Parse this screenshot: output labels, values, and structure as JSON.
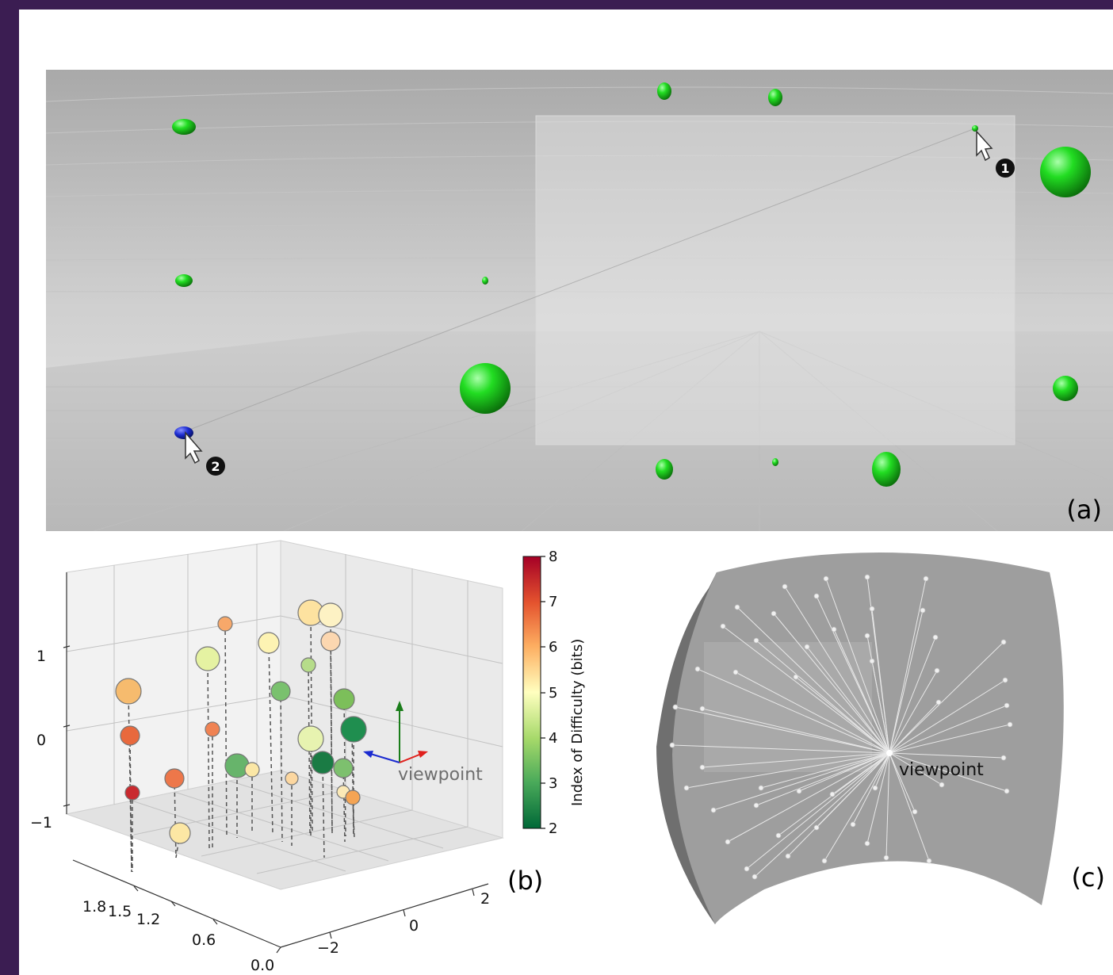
{
  "panels": {
    "a": {
      "label": "(a)",
      "markers": [
        "1",
        "2"
      ]
    },
    "b": {
      "label": "(b)",
      "viewpoint_label": "viewpoint",
      "colorbar": {
        "label": "Index of Difficulty (bits)",
        "ticks": [
          "2",
          "3",
          "4",
          "5",
          "6",
          "7",
          "8"
        ]
      },
      "z_ticks": [
        "1",
        "0",
        "−1"
      ],
      "depth_ticks": [
        "1.8",
        "1.5",
        "1.2",
        "0.6",
        "0.0"
      ],
      "x_ticks": [
        "2",
        "0",
        "−2"
      ]
    },
    "c": {
      "label": "(c)",
      "viewpoint_label": "viewpoint"
    }
  },
  "colors": {
    "page_border": "#3b1d52",
    "target_green": "#22cc22",
    "selected_blue": "#1a2ad0"
  },
  "icons": [
    "cursor-icon",
    "number-badge-icon",
    "axis-arrows-icon"
  ]
}
